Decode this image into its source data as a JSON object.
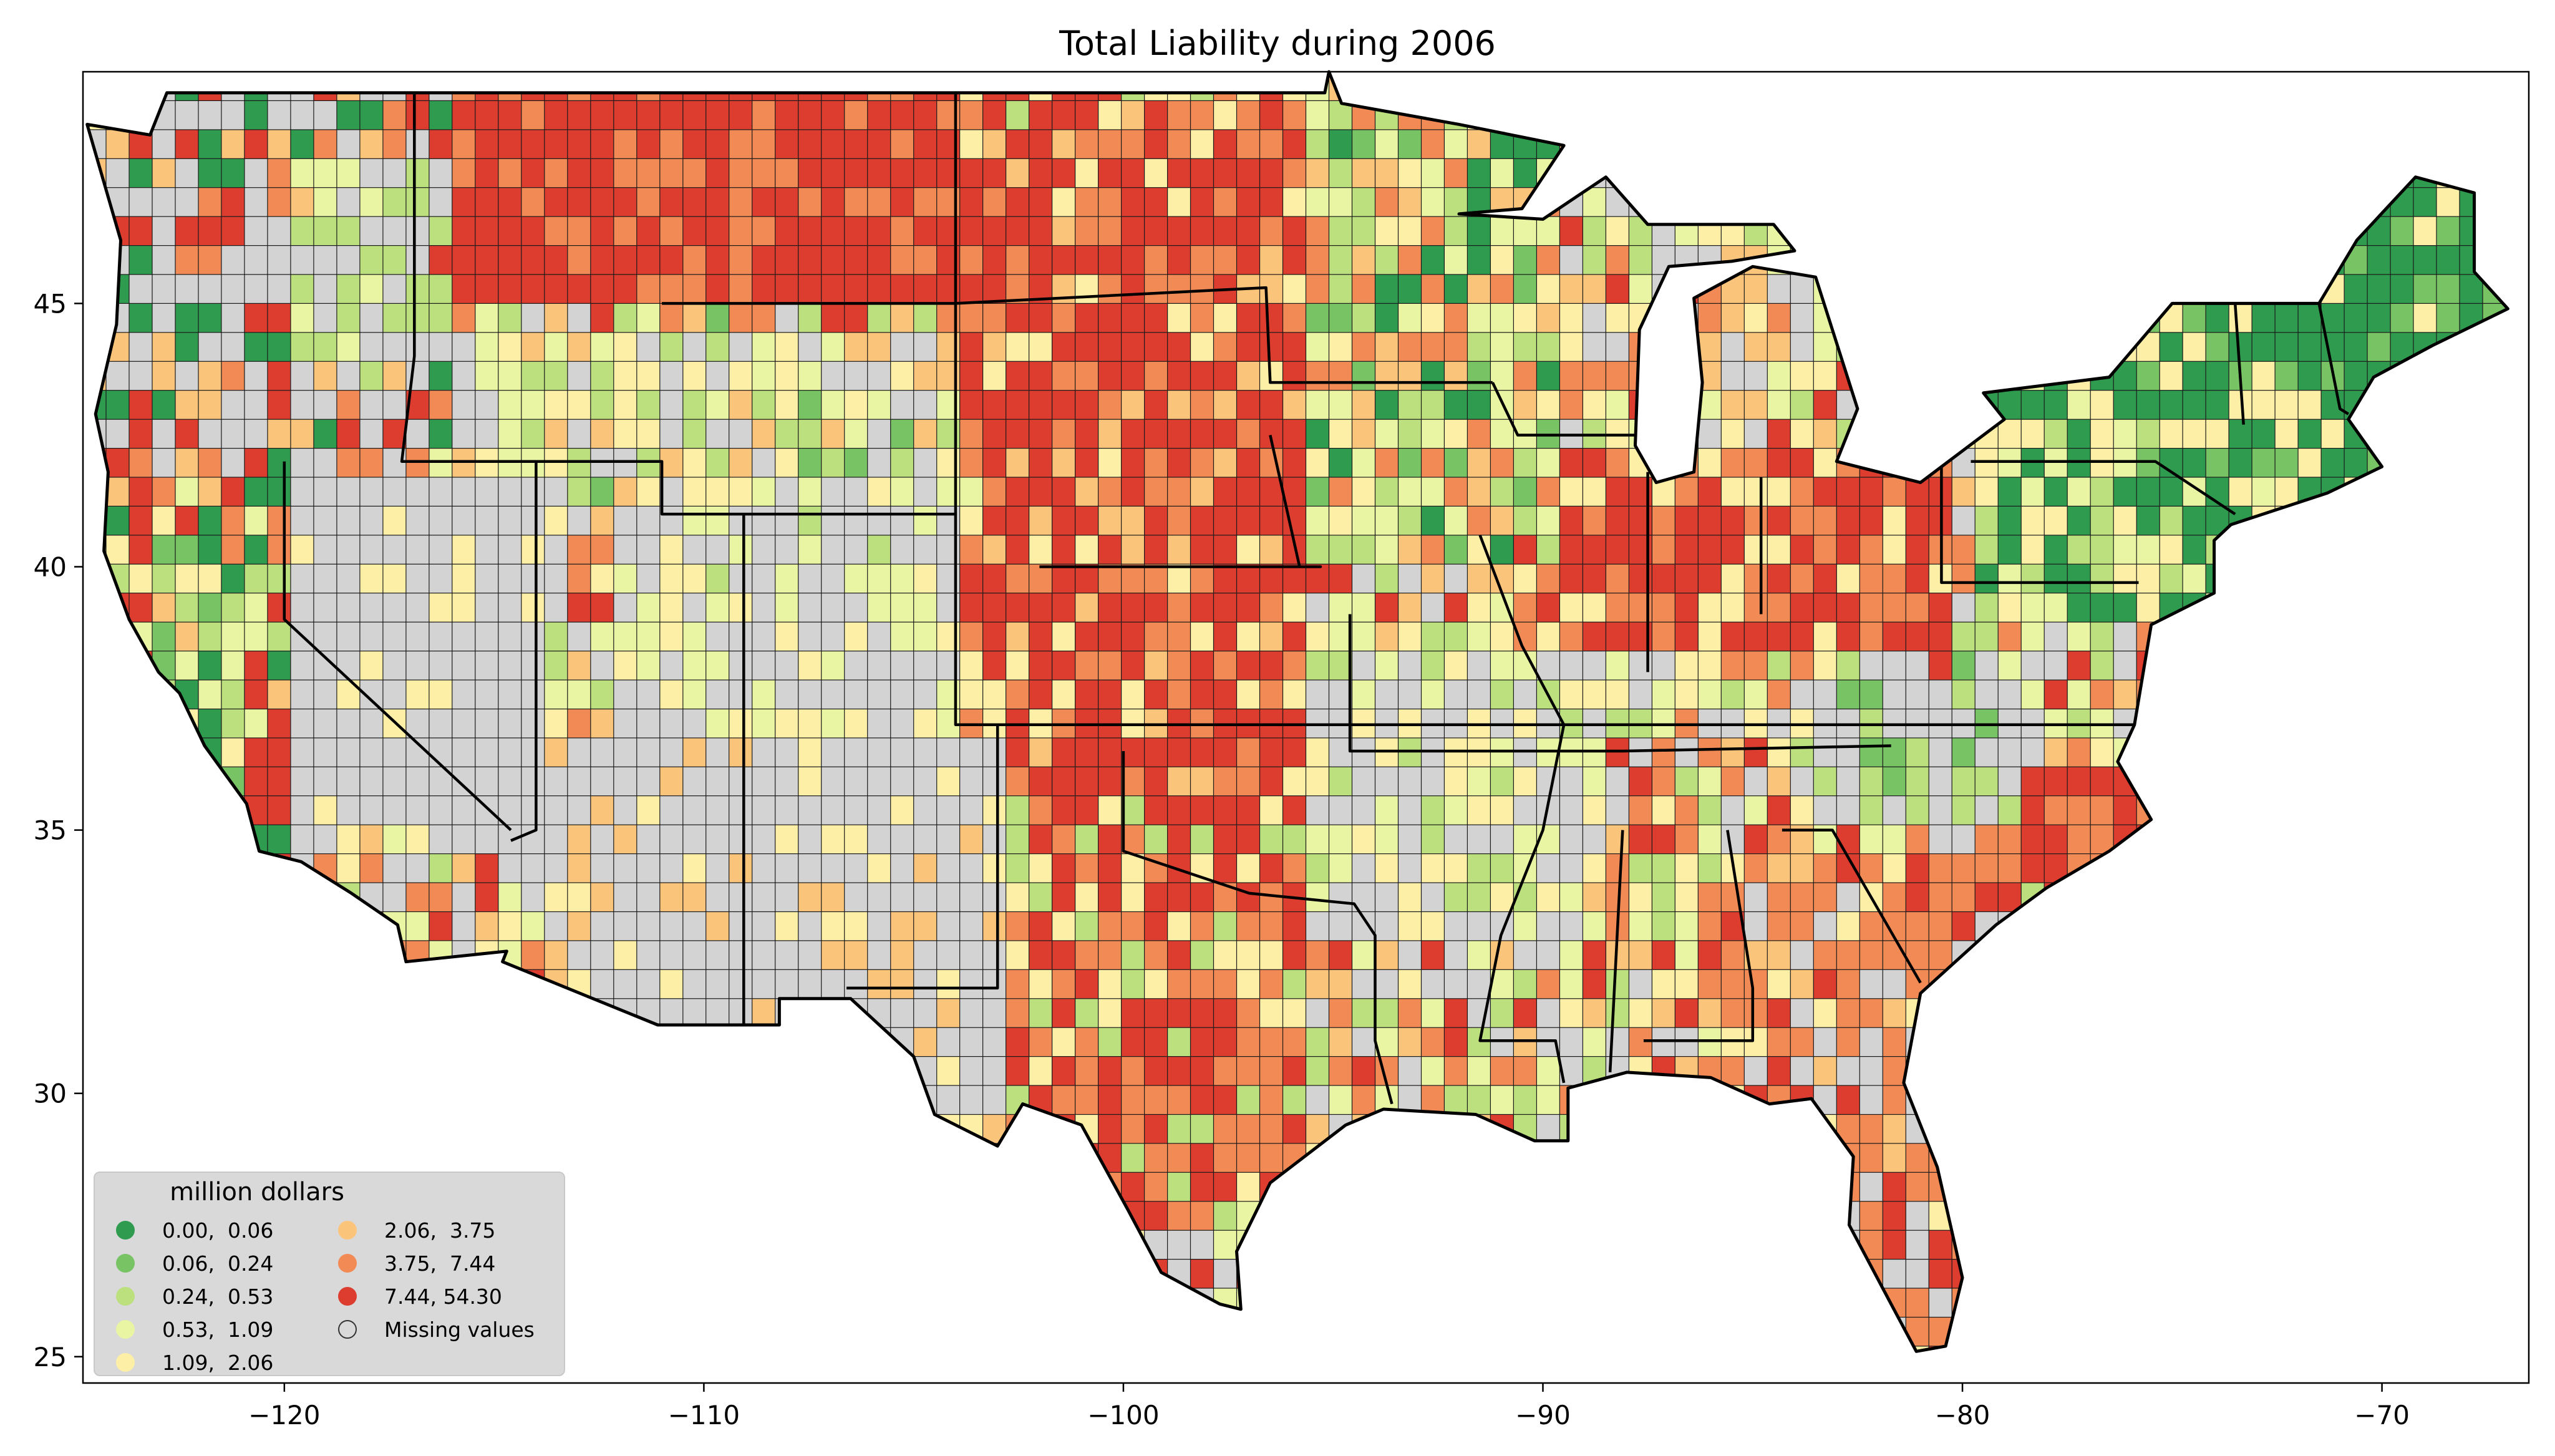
{
  "title": "Total Liability during 2006",
  "axes": {
    "x_ticks": [
      "−120",
      "−110",
      "−100",
      "−90",
      "−80",
      "−70"
    ],
    "y_ticks": [
      "25",
      "30",
      "35",
      "40",
      "45"
    ],
    "x_range": [
      -124.8,
      -66.5
    ],
    "y_range": [
      24.5,
      49.4
    ]
  },
  "legend": {
    "title": "million dollars",
    "placement": "lower-left",
    "items": [
      {
        "label": "0.00,  0.06",
        "color": "#2e9b4f"
      },
      {
        "label": "0.06,  0.24",
        "color": "#78c465"
      },
      {
        "label": "0.24,  0.53",
        "color": "#bde07f"
      },
      {
        "label": "0.53,  1.09",
        "color": "#e9f5a2"
      },
      {
        "label": "1.09,  2.06",
        "color": "#fdf0a6"
      },
      {
        "label": "2.06,  3.75",
        "color": "#fbc47b"
      },
      {
        "label": "3.75,  7.44",
        "color": "#f28a55"
      },
      {
        "label": "7.44, 54.30",
        "color": "#dc3d2f"
      },
      {
        "label": "Missing values",
        "color": "#d3d3d3"
      }
    ]
  },
  "map": {
    "missing_color": "#d3d3d3",
    "region_classes": {
      "pacific_northwest": "mixed",
      "great_basin": "Missing values",
      "southwest": "Missing values",
      "northern_great_plains": "7.44, 54.30",
      "central_great_plains": "7.44, 54.30",
      "corn_belt": "7.44, 54.30",
      "appalachia": "Missing values",
      "southeast": "mixed",
      "new_england": "0.00,  0.06"
    }
  }
}
